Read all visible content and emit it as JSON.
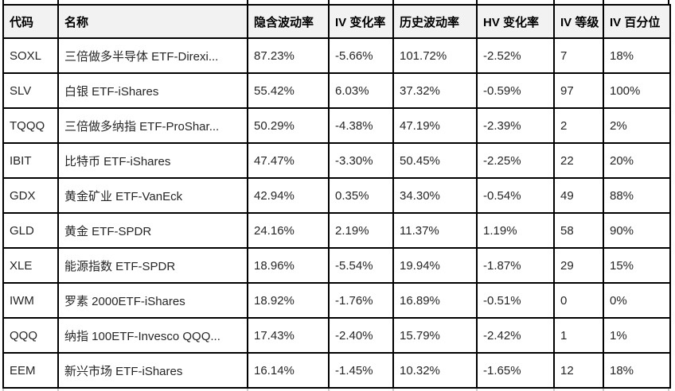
{
  "table": {
    "columns": [
      {
        "key": "code",
        "label": "代码"
      },
      {
        "key": "name",
        "label": "名称"
      },
      {
        "key": "iv",
        "label": "隐含波动率"
      },
      {
        "key": "iv_change",
        "label": "IV 变化率"
      },
      {
        "key": "hv",
        "label": "历史波动率"
      },
      {
        "key": "hv_change",
        "label": "HV 变化率"
      },
      {
        "key": "iv_rank",
        "label": "IV 等级"
      },
      {
        "key": "iv_percentile",
        "label": "IV 百分位"
      }
    ],
    "rows": [
      {
        "code": "SOXL",
        "name": "三倍做多半导体 ETF-Direxi...",
        "iv": "87.23%",
        "iv_change": "-5.66%",
        "hv": "101.72%",
        "hv_change": "-2.52%",
        "iv_rank": "7",
        "iv_percentile": "18%"
      },
      {
        "code": "SLV",
        "name": "白银 ETF-iShares",
        "iv": "55.42%",
        "iv_change": "6.03%",
        "hv": "37.32%",
        "hv_change": "-0.59%",
        "iv_rank": "97",
        "iv_percentile": "100%"
      },
      {
        "code": "TQQQ",
        "name": "三倍做多纳指 ETF-ProShar...",
        "iv": "50.29%",
        "iv_change": "-4.38%",
        "hv": "47.19%",
        "hv_change": "-2.39%",
        "iv_rank": "2",
        "iv_percentile": "2%"
      },
      {
        "code": "IBIT",
        "name": "比特币 ETF-iShares",
        "iv": "47.47%",
        "iv_change": "-3.30%",
        "hv": "50.45%",
        "hv_change": "-2.25%",
        "iv_rank": "22",
        "iv_percentile": "20%"
      },
      {
        "code": "GDX",
        "name": "黄金矿业 ETF-VanEck",
        "iv": "42.94%",
        "iv_change": "0.35%",
        "hv": "34.30%",
        "hv_change": "-0.54%",
        "iv_rank": "49",
        "iv_percentile": "88%"
      },
      {
        "code": "GLD",
        "name": "黄金 ETF-SPDR",
        "iv": "24.16%",
        "iv_change": "2.19%",
        "hv": "11.37%",
        "hv_change": "1.19%",
        "iv_rank": "58",
        "iv_percentile": "90%"
      },
      {
        "code": "XLE",
        "name": "能源指数 ETF-SPDR",
        "iv": "18.96%",
        "iv_change": "-5.54%",
        "hv": "19.94%",
        "hv_change": "-1.87%",
        "iv_rank": "29",
        "iv_percentile": "15%"
      },
      {
        "code": "IWM",
        "name": "罗素 2000ETF-iShares",
        "iv": "18.92%",
        "iv_change": "-1.76%",
        "hv": "16.89%",
        "hv_change": "-0.51%",
        "iv_rank": "0",
        "iv_percentile": "0%"
      },
      {
        "code": "QQQ",
        "name": "纳指 100ETF-Invesco QQQ...",
        "iv": "17.43%",
        "iv_change": "-2.40%",
        "hv": "15.79%",
        "hv_change": "-2.42%",
        "iv_rank": "1",
        "iv_percentile": "1%"
      },
      {
        "code": "EEM",
        "name": "新兴市场 ETF-iShares",
        "iv": "16.14%",
        "iv_change": "-1.45%",
        "hv": "10.32%",
        "hv_change": "-1.65%",
        "iv_rank": "12",
        "iv_percentile": "18%"
      }
    ]
  },
  "colors": {
    "border": "#000000",
    "header_bg": "#f2f2f2",
    "row_bg": "#ffffff",
    "header_text": "#000000",
    "cell_text": "#262626"
  }
}
